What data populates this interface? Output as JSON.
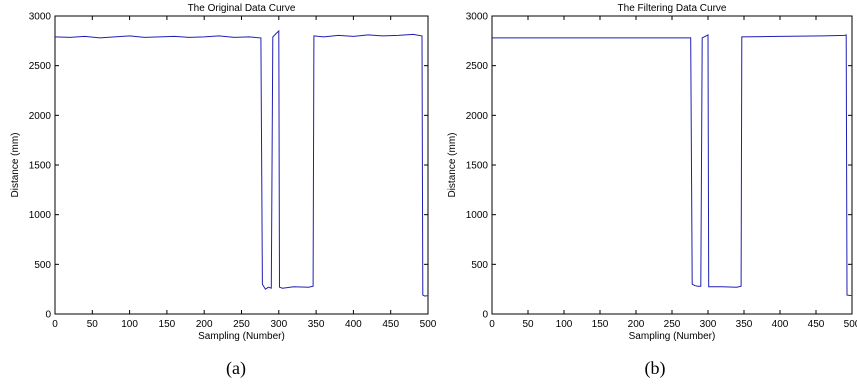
{
  "chart_data": [
    {
      "type": "line",
      "title": "The Original Data Curve",
      "xlabel": "Sampling (Number)",
      "ylabel": "Distance (mm)",
      "caption": "(a)",
      "xlim": [
        0,
        500
      ],
      "ylim": [
        0,
        3000
      ],
      "xticks": [
        0,
        50,
        100,
        150,
        200,
        250,
        300,
        350,
        400,
        450,
        500
      ],
      "yticks": [
        0,
        500,
        1000,
        1500,
        2000,
        2500,
        3000
      ],
      "grid": false,
      "series": [
        {
          "color": "#1f1fb4",
          "x": [
            0,
            20,
            40,
            60,
            80,
            100,
            120,
            140,
            160,
            180,
            200,
            220,
            240,
            260,
            276,
            278,
            282,
            286,
            290,
            292,
            296,
            300,
            301,
            305,
            320,
            340,
            346,
            347,
            360,
            380,
            400,
            420,
            440,
            460,
            480,
            492,
            493,
            496,
            499
          ],
          "y": [
            2790,
            2785,
            2795,
            2780,
            2790,
            2800,
            2785,
            2790,
            2795,
            2785,
            2790,
            2800,
            2785,
            2790,
            2780,
            300,
            250,
            270,
            260,
            2790,
            2820,
            2850,
            270,
            260,
            275,
            270,
            280,
            2800,
            2790,
            2805,
            2795,
            2810,
            2800,
            2805,
            2815,
            2800,
            190,
            180,
            185
          ]
        }
      ]
    },
    {
      "type": "line",
      "title": "The Filtering Data Curve",
      "xlabel": "Sampling (Number)",
      "ylabel": "Distance (mm)",
      "caption": "(b)",
      "xlim": [
        0,
        500
      ],
      "ylim": [
        0,
        3000
      ],
      "xticks": [
        0,
        50,
        100,
        150,
        200,
        250,
        300,
        350,
        400,
        450,
        500
      ],
      "yticks": [
        0,
        500,
        1000,
        1500,
        2000,
        2500,
        3000
      ],
      "grid": false,
      "series": [
        {
          "color": "#1f1fb4",
          "x": [
            0,
            100,
            200,
            276,
            278,
            282,
            286,
            290,
            292,
            300,
            301,
            320,
            340,
            346,
            347,
            400,
            460,
            490,
            492,
            493,
            499
          ],
          "y": [
            2780,
            2780,
            2780,
            2780,
            300,
            285,
            280,
            280,
            2780,
            2810,
            275,
            275,
            270,
            280,
            2790,
            2795,
            2800,
            2805,
            2810,
            190,
            185
          ]
        }
      ]
    }
  ]
}
